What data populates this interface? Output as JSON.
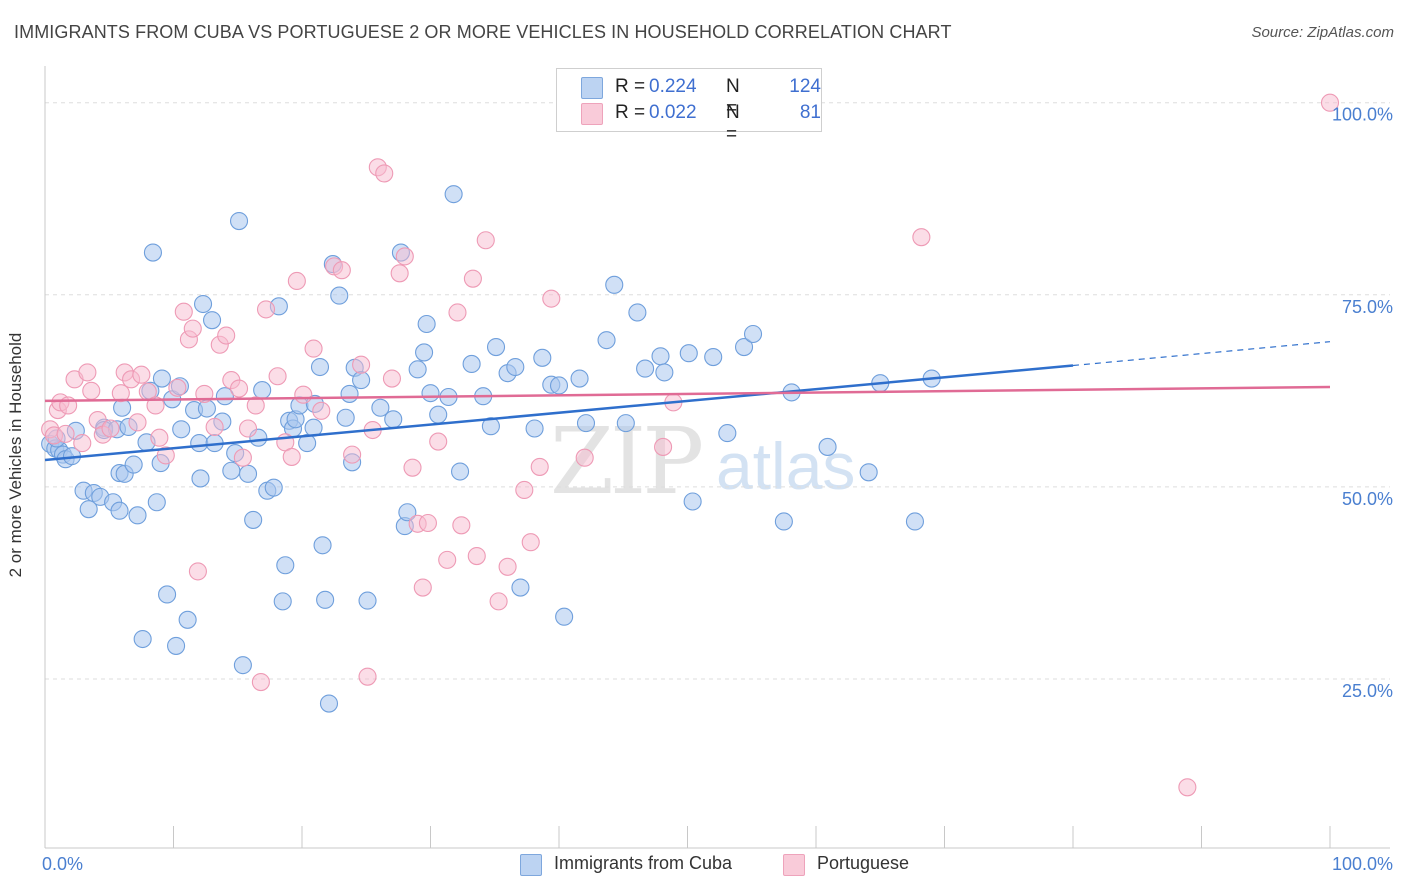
{
  "title": "IMMIGRANTS FROM CUBA VS PORTUGUESE 2 OR MORE VEHICLES IN HOUSEHOLD CORRELATION CHART",
  "source": "Source: ZipAtlas.com",
  "watermark": {
    "zip": "ZIP",
    "atlas": "atlas"
  },
  "legend": {
    "rows": [
      {
        "r_label": "R =",
        "r_value": "0.224",
        "n_label": "N =",
        "n_value": "124"
      },
      {
        "r_label": "R =",
        "r_value": "0.022",
        "n_label": "N =",
        "n_value": "81"
      }
    ]
  },
  "bottom_legend": {
    "cuba": "Immigrants from Cuba",
    "portuguese": "Portuguese"
  },
  "colors": {
    "cuba_fill": "#a9c6ee",
    "cuba_stroke": "#6f9fdc",
    "cuba_line": "#2f6fcc",
    "port_fill": "#f7bccf",
    "port_stroke": "#ee9ab5",
    "port_line": "#e06b95",
    "tick_text": "#4a7fd0",
    "grid": "#dddddd"
  },
  "chart_data": {
    "type": "scatter",
    "title": "IMMIGRANTS FROM CUBA VS PORTUGUESE 2 OR MORE VEHICLES IN HOUSEHOLD CORRELATION CHART",
    "xlabel": "",
    "ylabel": "2 or more Vehicles in Household",
    "xlim": [
      0,
      100
    ],
    "ylim": [
      3,
      104
    ],
    "x_tick_labels": [
      {
        "value": 0,
        "label": "0.0%"
      },
      {
        "value": 100,
        "label": "100.0%"
      }
    ],
    "y_tick_labels": [
      {
        "value": 100,
        "label": "100.0%"
      },
      {
        "value": 75,
        "label": "75.0%"
      },
      {
        "value": 50,
        "label": "50.0%"
      },
      {
        "value": 25,
        "label": "25.0%"
      }
    ],
    "grid": true,
    "legend_position": "top-center",
    "series": [
      {
        "name": "Immigrants from Cuba",
        "color": "#a9c6ee",
        "trend": {
          "x0": 0,
          "y0": 53.5,
          "x1": 80,
          "y1": 65.8,
          "dash_to_x": 100,
          "dash_to_y": 68.9
        },
        "points": [
          [
            0.4,
            55.6
          ],
          [
            0.8,
            55.0
          ],
          [
            1.1,
            54.8
          ],
          [
            1.4,
            54.2
          ],
          [
            0.9,
            56.3
          ],
          [
            1.6,
            53.6
          ],
          [
            2.1,
            54.0
          ],
          [
            2.4,
            57.3
          ],
          [
            3.0,
            49.5
          ],
          [
            3.4,
            47.1
          ],
          [
            3.8,
            49.2
          ],
          [
            4.3,
            48.7
          ],
          [
            4.6,
            57.7
          ],
          [
            4.6,
            57.4
          ],
          [
            5.3,
            48.0
          ],
          [
            5.6,
            57.5
          ],
          [
            5.8,
            51.8
          ],
          [
            5.8,
            46.9
          ],
          [
            6.0,
            60.3
          ],
          [
            6.2,
            51.7
          ],
          [
            6.5,
            57.8
          ],
          [
            6.9,
            52.9
          ],
          [
            7.2,
            46.3
          ],
          [
            7.6,
            30.2
          ],
          [
            7.9,
            55.8
          ],
          [
            8.2,
            62.5
          ],
          [
            8.4,
            80.5
          ],
          [
            8.7,
            48.0
          ],
          [
            9.0,
            53.1
          ],
          [
            9.1,
            64.1
          ],
          [
            9.5,
            36.0
          ],
          [
            9.9,
            61.4
          ],
          [
            10.2,
            29.3
          ],
          [
            10.5,
            63.1
          ],
          [
            10.6,
            57.5
          ],
          [
            11.1,
            32.7
          ],
          [
            11.6,
            60.0
          ],
          [
            12.0,
            55.7
          ],
          [
            12.1,
            51.1
          ],
          [
            12.3,
            73.8
          ],
          [
            12.6,
            60.2
          ],
          [
            13.0,
            71.7
          ],
          [
            13.2,
            55.7
          ],
          [
            13.8,
            58.5
          ],
          [
            14.0,
            61.8
          ],
          [
            14.5,
            52.1
          ],
          [
            14.8,
            54.4
          ],
          [
            15.1,
            84.6
          ],
          [
            15.4,
            26.8
          ],
          [
            15.8,
            51.7
          ],
          [
            16.2,
            45.7
          ],
          [
            16.6,
            56.4
          ],
          [
            16.9,
            62.6
          ],
          [
            17.3,
            49.5
          ],
          [
            17.8,
            49.9
          ],
          [
            18.2,
            73.5
          ],
          [
            18.5,
            35.1
          ],
          [
            18.7,
            39.8
          ],
          [
            19.0,
            58.6
          ],
          [
            19.3,
            57.6
          ],
          [
            19.5,
            58.8
          ],
          [
            19.8,
            60.6
          ],
          [
            20.4,
            55.7
          ],
          [
            20.9,
            57.7
          ],
          [
            21.0,
            60.8
          ],
          [
            21.4,
            65.6
          ],
          [
            21.6,
            42.4
          ],
          [
            21.8,
            35.3
          ],
          [
            22.1,
            21.8
          ],
          [
            22.4,
            79.0
          ],
          [
            22.9,
            74.9
          ],
          [
            23.4,
            59.0
          ],
          [
            23.7,
            62.1
          ],
          [
            23.9,
            53.2
          ],
          [
            24.1,
            65.5
          ],
          [
            24.6,
            63.9
          ],
          [
            25.1,
            35.2
          ],
          [
            26.1,
            60.3
          ],
          [
            27.1,
            58.8
          ],
          [
            27.7,
            80.5
          ],
          [
            28.0,
            44.9
          ],
          [
            28.2,
            46.7
          ],
          [
            29.0,
            65.3
          ],
          [
            29.5,
            67.5
          ],
          [
            29.7,
            71.2
          ],
          [
            30.0,
            62.2
          ],
          [
            30.6,
            59.4
          ],
          [
            31.4,
            61.7
          ],
          [
            31.8,
            88.1
          ],
          [
            32.3,
            52.0
          ],
          [
            33.2,
            66.0
          ],
          [
            34.1,
            61.8
          ],
          [
            34.7,
            57.9
          ],
          [
            35.1,
            68.2
          ],
          [
            36.0,
            64.8
          ],
          [
            36.6,
            65.6
          ],
          [
            37.0,
            36.9
          ],
          [
            38.1,
            57.6
          ],
          [
            38.7,
            66.8
          ],
          [
            39.4,
            63.3
          ],
          [
            40.0,
            63.2
          ],
          [
            40.4,
            33.1
          ],
          [
            41.6,
            64.1
          ],
          [
            42.1,
            58.3
          ],
          [
            43.7,
            69.1
          ],
          [
            44.3,
            76.3
          ],
          [
            45.2,
            58.3
          ],
          [
            46.1,
            72.7
          ],
          [
            46.7,
            65.4
          ],
          [
            47.9,
            67.0
          ],
          [
            48.2,
            64.9
          ],
          [
            50.1,
            67.4
          ],
          [
            50.4,
            48.1
          ],
          [
            52.0,
            66.9
          ],
          [
            53.1,
            57.0
          ],
          [
            54.4,
            68.2
          ],
          [
            55.1,
            69.9
          ],
          [
            57.5,
            45.5
          ],
          [
            58.1,
            62.3
          ],
          [
            60.9,
            55.2
          ],
          [
            64.1,
            51.9
          ],
          [
            65.0,
            63.5
          ],
          [
            67.7,
            45.5
          ],
          [
            69.0,
            64.1
          ]
        ]
      },
      {
        "name": "Portuguese",
        "color": "#f7bccf",
        "trend": {
          "x0": 0,
          "y0": 61.2,
          "x1": 100,
          "y1": 63.0
        },
        "points": [
          [
            0.4,
            57.5
          ],
          [
            0.7,
            56.7
          ],
          [
            1.0,
            60.0
          ],
          [
            1.2,
            61.0
          ],
          [
            1.6,
            56.9
          ],
          [
            1.8,
            60.6
          ],
          [
            2.3,
            64.0
          ],
          [
            2.9,
            55.7
          ],
          [
            3.3,
            64.9
          ],
          [
            3.6,
            62.5
          ],
          [
            4.1,
            58.7
          ],
          [
            4.5,
            56.8
          ],
          [
            5.1,
            57.6
          ],
          [
            5.9,
            62.2
          ],
          [
            6.2,
            64.9
          ],
          [
            6.7,
            64.0
          ],
          [
            7.2,
            58.4
          ],
          [
            7.5,
            64.6
          ],
          [
            8.0,
            62.4
          ],
          [
            8.6,
            60.6
          ],
          [
            8.9,
            56.4
          ],
          [
            9.4,
            54.1
          ],
          [
            10.3,
            62.9
          ],
          [
            10.8,
            72.8
          ],
          [
            11.2,
            69.2
          ],
          [
            11.5,
            70.6
          ],
          [
            11.9,
            39.0
          ],
          [
            12.4,
            62.1
          ],
          [
            13.2,
            57.8
          ],
          [
            13.6,
            68.5
          ],
          [
            14.1,
            69.7
          ],
          [
            14.5,
            63.9
          ],
          [
            15.1,
            62.8
          ],
          [
            15.4,
            53.8
          ],
          [
            15.8,
            57.6
          ],
          [
            16.4,
            60.6
          ],
          [
            16.8,
            24.6
          ],
          [
            17.2,
            73.1
          ],
          [
            18.1,
            64.4
          ],
          [
            18.7,
            55.8
          ],
          [
            19.2,
            53.9
          ],
          [
            19.6,
            76.8
          ],
          [
            20.1,
            62.0
          ],
          [
            20.9,
            68.0
          ],
          [
            21.5,
            59.9
          ],
          [
            22.5,
            78.7
          ],
          [
            23.1,
            78.2
          ],
          [
            23.9,
            54.2
          ],
          [
            24.6,
            65.9
          ],
          [
            25.1,
            25.3
          ],
          [
            25.9,
            91.6
          ],
          [
            26.4,
            90.8
          ],
          [
            27.0,
            64.1
          ],
          [
            27.6,
            77.8
          ],
          [
            28.0,
            80.0
          ],
          [
            28.6,
            52.5
          ],
          [
            29.0,
            45.2
          ],
          [
            29.4,
            36.9
          ],
          [
            29.8,
            45.3
          ],
          [
            30.6,
            55.9
          ],
          [
            31.3,
            40.5
          ],
          [
            32.1,
            72.7
          ],
          [
            32.4,
            45.0
          ],
          [
            33.3,
            77.1
          ],
          [
            33.6,
            41.0
          ],
          [
            34.3,
            82.1
          ],
          [
            35.3,
            35.1
          ],
          [
            36.0,
            39.6
          ],
          [
            37.3,
            49.6
          ],
          [
            37.8,
            42.8
          ],
          [
            38.5,
            52.6
          ],
          [
            39.4,
            74.5
          ],
          [
            42.0,
            53.8
          ],
          [
            44.9,
            100.0
          ],
          [
            48.1,
            55.2
          ],
          [
            48.9,
            61.0
          ],
          [
            68.2,
            82.5
          ],
          [
            88.9,
            10.9
          ],
          [
            100.0,
            100.0
          ],
          [
            25.5,
            57.4
          ],
          [
            40.5,
            100.0
          ]
        ]
      }
    ]
  }
}
